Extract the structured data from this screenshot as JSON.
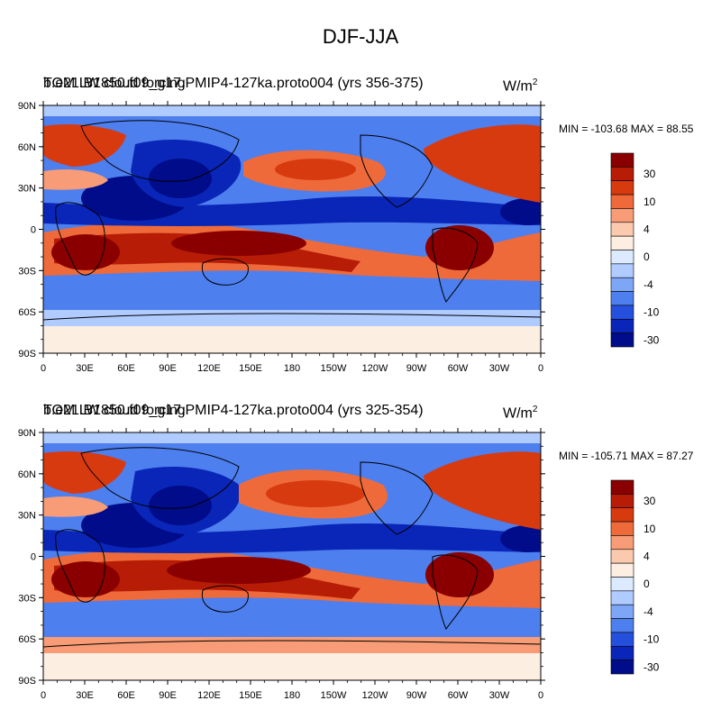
{
  "figure": {
    "title": "DJF-JJA",
    "units": "W/m",
    "units_sup": "2"
  },
  "panels": [
    {
      "title_a": "TOM LW cloud forcing",
      "title_b": "b.e21.B1850.f09_g17.PMIP4-127ka.proto004 (yrs 356-375)",
      "minmax": "MIN = -103.68 MAX =  88.55"
    },
    {
      "title_a": "TOM LW cloud forcing",
      "title_b": "b.e21.B1850.f09_g17.PMIP4-127ka.proto004 (yrs 325-354)",
      "minmax": "MIN = -105.71 MAX =  87.27"
    }
  ],
  "axes": {
    "lat_labels": [
      "90N",
      "60N",
      "30N",
      "0",
      "30S",
      "60S",
      "90S"
    ],
    "lon_labels": [
      "0",
      "30E",
      "60E",
      "90E",
      "120E",
      "150E",
      "180",
      "150W",
      "120W",
      "90W",
      "60W",
      "30W",
      "0"
    ]
  },
  "colorbar": {
    "labels": [
      "30",
      "10",
      "4",
      "0",
      "-4",
      "-10",
      "-30"
    ],
    "colors": [
      "#8a0000",
      "#b71c06",
      "#d83a10",
      "#ef6a3a",
      "#f79c76",
      "#fbc9ae",
      "#fdeee2",
      "#dceaff",
      "#b0cbff",
      "#7ea6f7",
      "#4d7fee",
      "#2550de",
      "#0a26b8",
      "#000c8a"
    ]
  },
  "map_colors": {
    "deep_red": "#8a0000",
    "red": "#d83a10",
    "light_red": "#f79c76",
    "pale": "#fdeee2",
    "light_blue": "#b0cbff",
    "blue": "#4d7fee",
    "deep_blue": "#0a26b8",
    "navy": "#000c8a"
  }
}
